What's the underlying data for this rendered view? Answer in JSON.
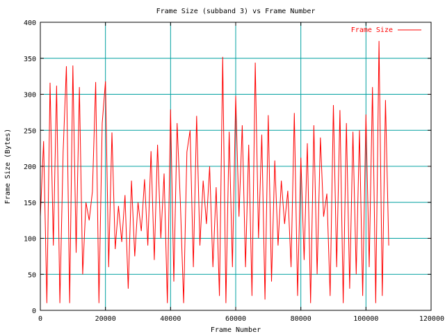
{
  "colors": {
    "background": "#ffffff",
    "grid": "#00a0a0",
    "axis": "#000000",
    "series": "#ff0000"
  },
  "chart_data": {
    "type": "line",
    "title": "Frame Size (subband 3) vs Frame Number",
    "xlabel": "Frame Number",
    "ylabel": "Frame Size (Bytes)",
    "xlim": [
      0,
      120000
    ],
    "ylim": [
      0,
      400
    ],
    "xticks": [
      0,
      20000,
      40000,
      60000,
      80000,
      100000,
      120000
    ],
    "xtick_labels": [
      "0",
      "20000",
      "40000",
      "60000",
      "80000",
      "100000",
      "120000"
    ],
    "yticks": [
      0,
      50,
      100,
      150,
      200,
      250,
      300,
      350,
      400
    ],
    "ytick_labels": [
      "0",
      "50",
      "100",
      "150",
      "200",
      "250",
      "300",
      "350",
      "400"
    ],
    "grid": true,
    "legend_position": "top-right",
    "series": [
      {
        "name": "Frame Size",
        "color": "#ff0000",
        "x": [
          0,
          1000,
          2000,
          3000,
          4000,
          5000,
          6000,
          7000,
          8000,
          9000,
          10000,
          11000,
          12000,
          13000,
          14000,
          15000,
          16000,
          17000,
          18000,
          19000,
          20000,
          21000,
          22000,
          23000,
          24000,
          25000,
          26000,
          27000,
          28000,
          29000,
          30000,
          31000,
          32000,
          33000,
          34000,
          35000,
          36000,
          37000,
          38000,
          39000,
          40000,
          41000,
          42000,
          43000,
          44000,
          45000,
          46000,
          47000,
          48000,
          49000,
          50000,
          51000,
          52000,
          53000,
          54000,
          55000,
          56000,
          57000,
          58000,
          59000,
          60000,
          61000,
          62000,
          63000,
          64000,
          65000,
          66000,
          67000,
          68000,
          69000,
          70000,
          71000,
          72000,
          73000,
          74000,
          75000,
          76000,
          77000,
          78000,
          79000,
          80000,
          81000,
          82000,
          83000,
          84000,
          85000,
          86000,
          87000,
          88000,
          89000,
          90000,
          91000,
          92000,
          93000,
          94000,
          95000,
          96000,
          97000,
          98000,
          99000,
          100000,
          101000,
          102000,
          103000,
          104000,
          105000,
          106000,
          107000
        ],
        "y": [
          130,
          235,
          10,
          316,
          90,
          312,
          10,
          220,
          339,
          10,
          340,
          80,
          310,
          50,
          150,
          125,
          165,
          317,
          10,
          260,
          318,
          60,
          247,
          85,
          145,
          95,
          160,
          30,
          180,
          75,
          150,
          110,
          182,
          90,
          221,
          70,
          230,
          100,
          190,
          10,
          279,
          40,
          260,
          150,
          10,
          220,
          250,
          60,
          270,
          90,
          180,
          120,
          200,
          60,
          171,
          20,
          352,
          10,
          248,
          60,
          298,
          130,
          257,
          60,
          230,
          20,
          344,
          100,
          244,
          15,
          271,
          40,
          208,
          90,
          180,
          120,
          166,
          60,
          274,
          20,
          212,
          70,
          232,
          10,
          257,
          50,
          240,
          130,
          162,
          20,
          285,
          60,
          278,
          10,
          260,
          30,
          248,
          50,
          250,
          20,
          272,
          60,
          310,
          10,
          374,
          20,
          292,
          90
        ]
      }
    ]
  }
}
